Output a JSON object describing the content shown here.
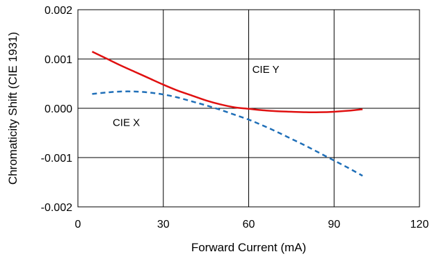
{
  "chart_data": {
    "type": "line",
    "xlabel": "Forward Current (mA)",
    "ylabel": "Chromaticity Shift (CIE 1931)",
    "xlim": [
      0,
      120
    ],
    "ylim": [
      -0.002,
      0.002
    ],
    "x_ticks": [
      0,
      30,
      60,
      90,
      120
    ],
    "x_tick_labels": [
      "0",
      "30",
      "60",
      "90",
      "120"
    ],
    "y_ticks": [
      0.002,
      0.001,
      0.0,
      -0.001,
      -0.002
    ],
    "y_tick_labels": [
      "0.002",
      "0.001",
      "0.000",
      "-0.001",
      "-0.002"
    ],
    "grid": true,
    "legend": "none",
    "series": [
      {
        "name": "CIE Y",
        "color": "#e01010",
        "dash": "solid",
        "x": [
          5,
          10,
          15,
          20,
          25,
          30,
          35,
          40,
          45,
          50,
          55,
          60,
          65,
          70,
          75,
          80,
          85,
          90,
          95,
          100
        ],
        "y": [
          0.00115,
          0.00101,
          0.00087,
          0.00074,
          0.00061,
          0.00048,
          0.00036,
          0.00026,
          0.00016,
          8e-05,
          2e-05,
          -1e-05,
          -4e-05,
          -6e-05,
          -7e-05,
          -8e-05,
          -8e-05,
          -7e-05,
          -5e-05,
          -2e-05
        ]
      },
      {
        "name": "CIE X",
        "color": "#1f6fb8",
        "dash": "dashed",
        "x": [
          5,
          10,
          15,
          20,
          25,
          30,
          35,
          40,
          45,
          50,
          55,
          60,
          65,
          70,
          75,
          80,
          85,
          90,
          95,
          100
        ],
        "y": [
          0.00029,
          0.00032,
          0.00034,
          0.00034,
          0.00032,
          0.00028,
          0.00022,
          0.00014,
          6e-05,
          -3e-05,
          -0.00013,
          -0.00023,
          -0.00035,
          -0.00048,
          -0.00062,
          -0.00076,
          -0.00091,
          -0.00106,
          -0.00121,
          -0.00137
        ]
      }
    ],
    "annotations": [
      {
        "text": "CIE Y",
        "x": 66,
        "y": 0.00072
      },
      {
        "text": "CIE X",
        "x": 17,
        "y": -0.00036
      }
    ]
  }
}
